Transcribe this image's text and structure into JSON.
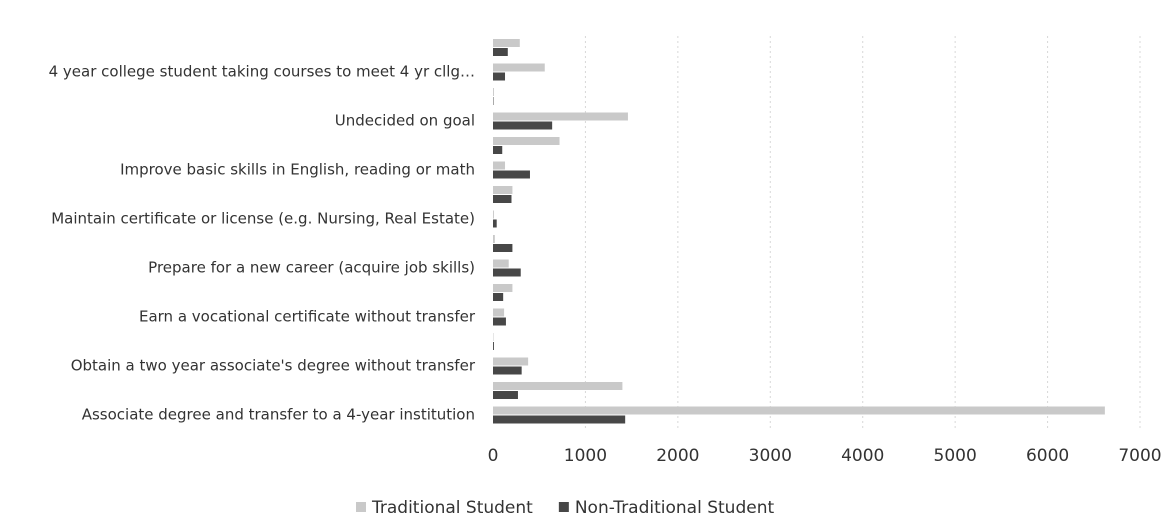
{
  "chart_data": {
    "type": "bar",
    "orientation": "horizontal",
    "categories": [
      null,
      "4 year college student taking courses to meet 4 yr cllg…",
      null,
      "Undecided on goal",
      null,
      "Improve basic skills in English, reading or math",
      null,
      "Maintain certificate or license (e.g. Nursing, Real Estate)",
      null,
      "Prepare for a new career (acquire job skills)",
      null,
      "Earn a vocational certificate without transfer",
      null,
      "Obtain a two year associate's degree without transfer",
      null,
      "Associate degree and transfer to a 4-year institution"
    ],
    "series": [
      {
        "name": "Traditional Student",
        "color": "#c9c9c9",
        "values": [
          290,
          560,
          10,
          1460,
          720,
          130,
          210,
          10,
          20,
          170,
          210,
          120,
          5,
          380,
          1400,
          6620
        ]
      },
      {
        "name": "Non-Traditional Student",
        "color": "#474747",
        "values": [
          160,
          130,
          5,
          640,
          100,
          400,
          200,
          40,
          210,
          300,
          110,
          140,
          10,
          310,
          270,
          1430
        ]
      }
    ],
    "xlim": [
      0,
      7000
    ],
    "xticks": [
      0,
      1000,
      2000,
      3000,
      4000,
      5000,
      6000,
      7000
    ],
    "grid": true,
    "legend": "bottom"
  }
}
